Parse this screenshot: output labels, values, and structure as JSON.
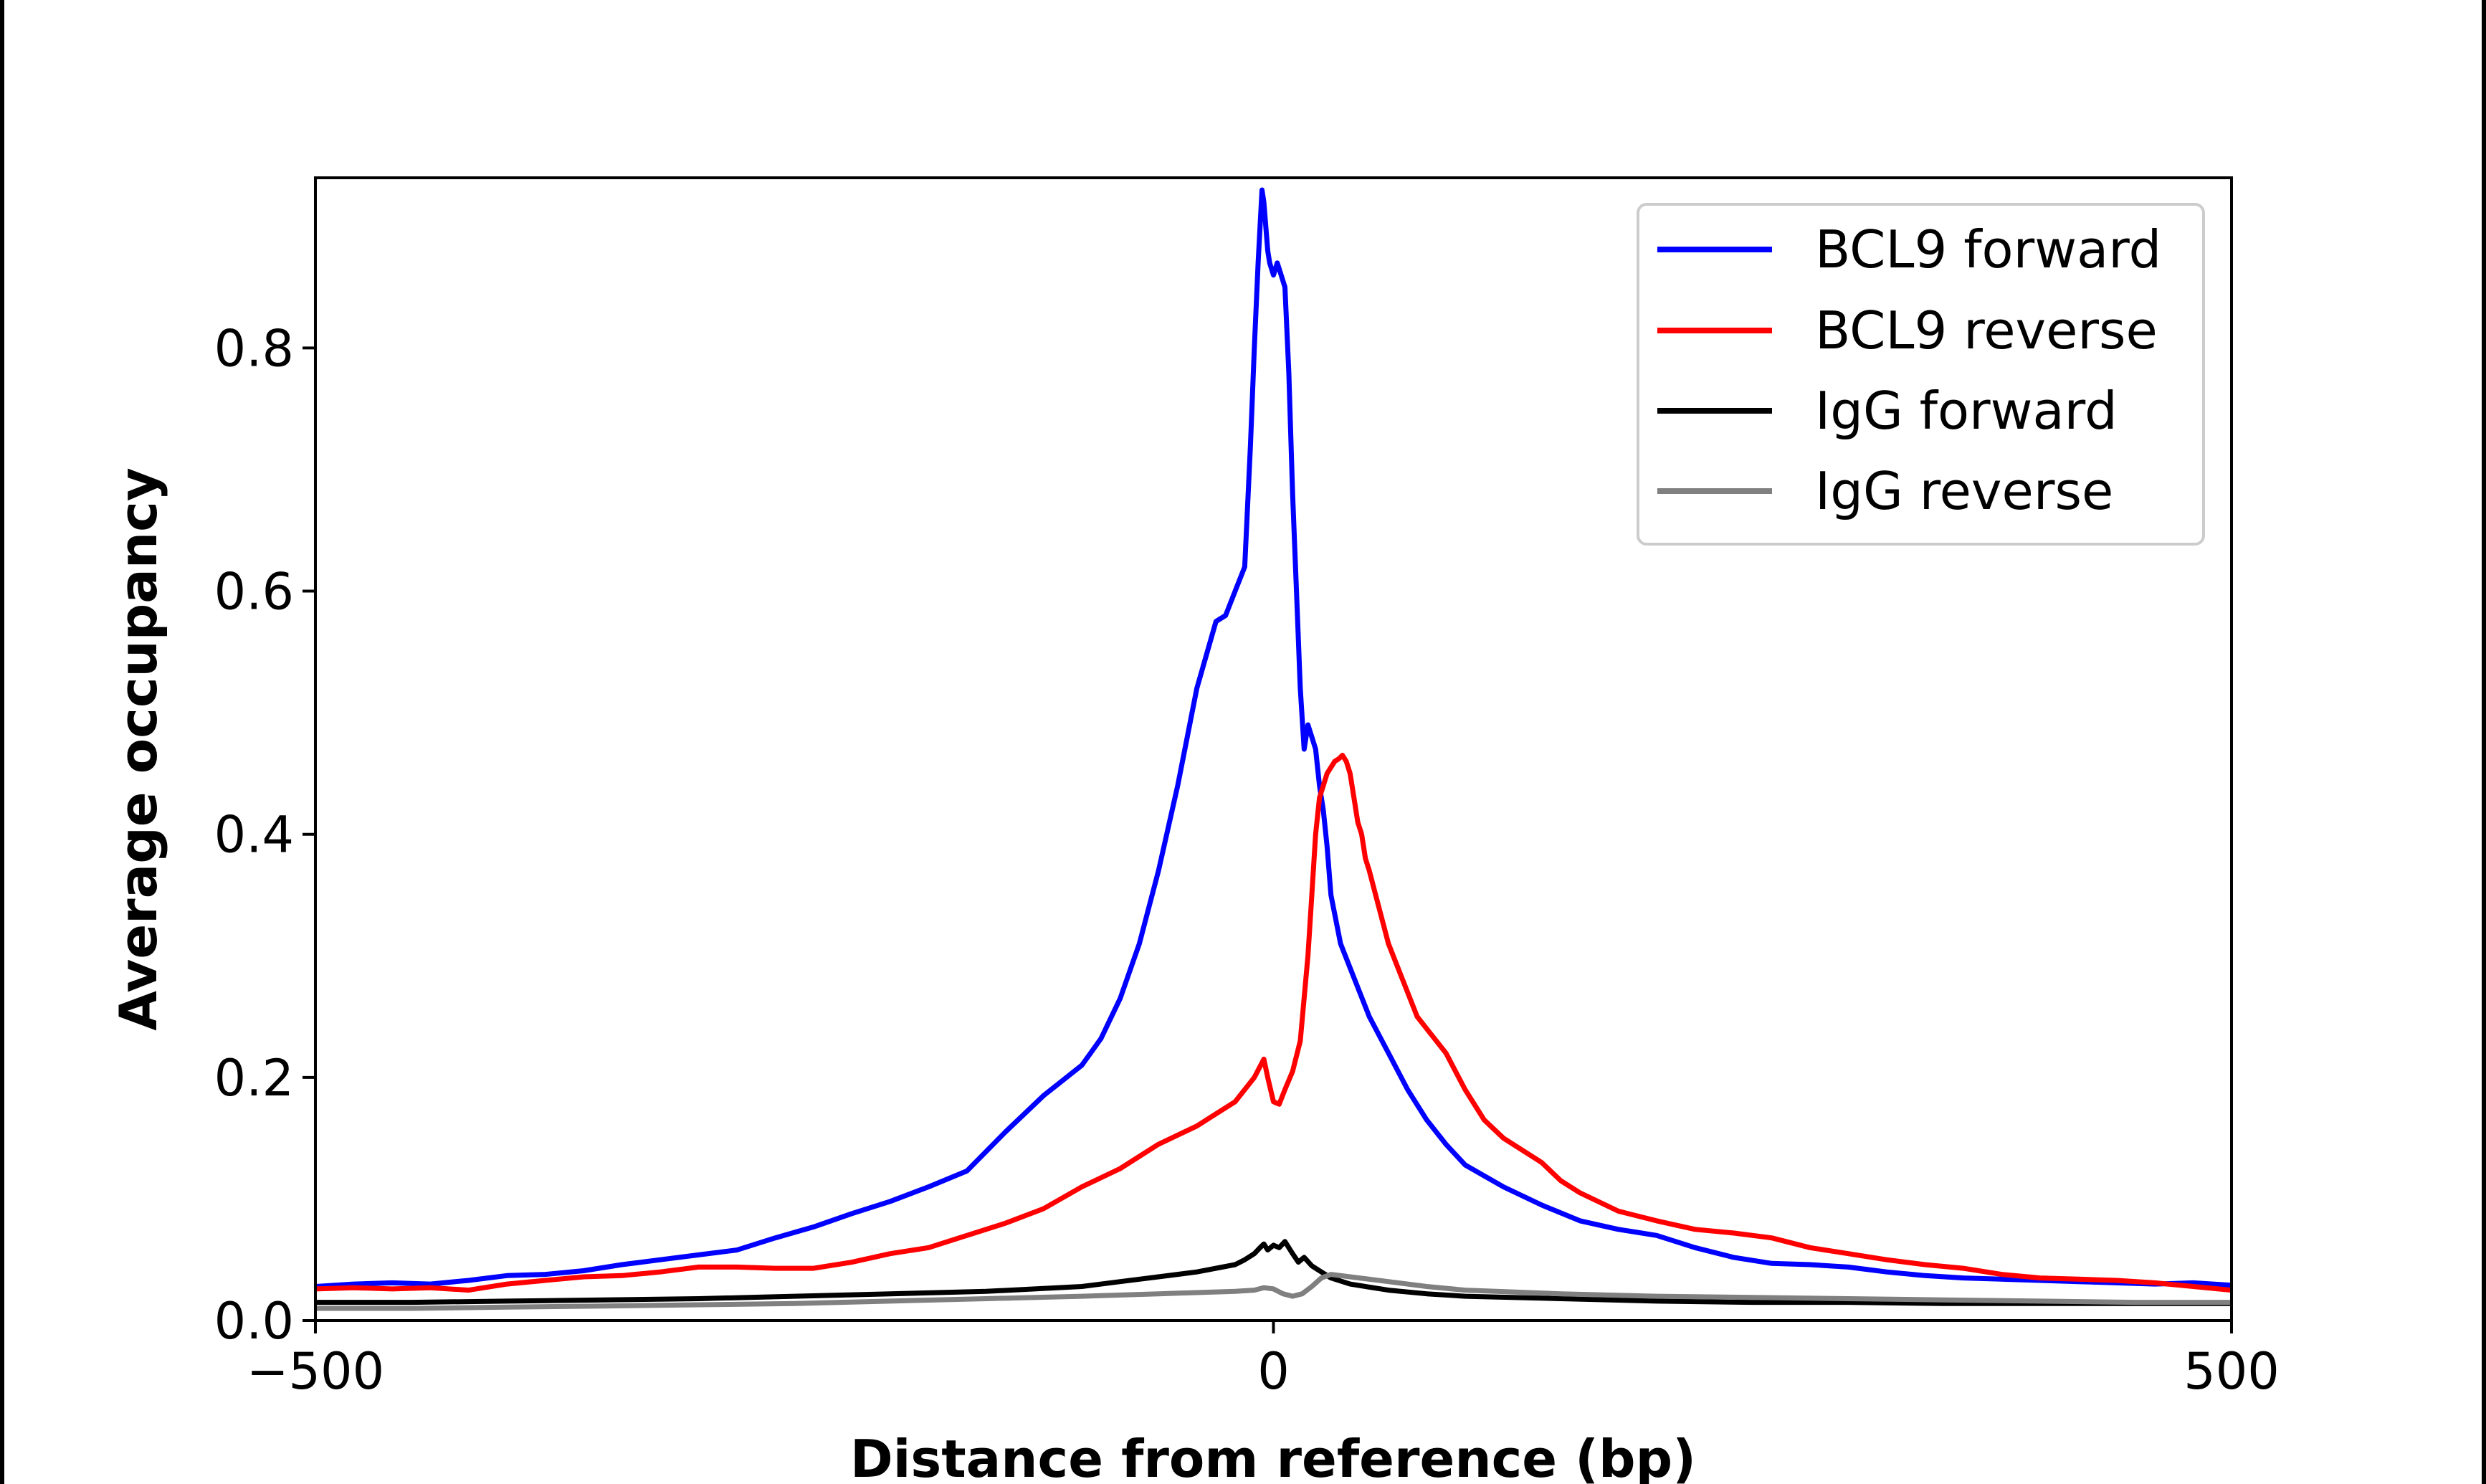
{
  "chart_data": {
    "type": "line",
    "xlabel": "Distance from reference (bp)",
    "ylabel": "Average occupancy",
    "xlim": [
      -500,
      500
    ],
    "ylim": [
      0,
      0.94
    ],
    "x_ticks": [
      -500,
      0,
      500
    ],
    "x_tick_labels": [
      "−500",
      "0",
      "500"
    ],
    "y_ticks": [
      0.0,
      0.2,
      0.4,
      0.6,
      0.8
    ],
    "y_tick_labels": [
      "0.0",
      "0.2",
      "0.4",
      "0.6",
      "0.8"
    ],
    "grid": false,
    "legend_position": "top-right",
    "series": [
      {
        "name": "BCL9 forward",
        "color": "#0000ff",
        "x": [
          -500,
          -480,
          -460,
          -440,
          -420,
          -400,
          -380,
          -360,
          -340,
          -320,
          -300,
          -280,
          -260,
          -240,
          -220,
          -200,
          -180,
          -160,
          -140,
          -120,
          -100,
          -90,
          -80,
          -70,
          -60,
          -50,
          -40,
          -30,
          -25,
          -20,
          -15,
          -12,
          -10,
          -8,
          -7,
          -6,
          -5,
          -4,
          -3,
          -2,
          0,
          2,
          4,
          6,
          8,
          10,
          12,
          14,
          16,
          18,
          20,
          22,
          24,
          26,
          28,
          30,
          35,
          40,
          45,
          50,
          60,
          70,
          80,
          90,
          100,
          120,
          140,
          160,
          180,
          200,
          220,
          240,
          260,
          280,
          300,
          320,
          340,
          360,
          380,
          400,
          420,
          440,
          460,
          480,
          500
        ],
        "y": [
          0.028,
          0.03,
          0.031,
          0.03,
          0.033,
          0.037,
          0.038,
          0.041,
          0.046,
          0.05,
          0.054,
          0.058,
          0.068,
          0.077,
          0.088,
          0.098,
          0.11,
          0.123,
          0.155,
          0.185,
          0.21,
          0.232,
          0.265,
          0.31,
          0.37,
          0.44,
          0.52,
          0.575,
          0.58,
          0.6,
          0.62,
          0.72,
          0.8,
          0.87,
          0.9,
          0.93,
          0.92,
          0.9,
          0.88,
          0.87,
          0.86,
          0.87,
          0.86,
          0.85,
          0.78,
          0.68,
          0.6,
          0.52,
          0.47,
          0.49,
          0.48,
          0.47,
          0.44,
          0.42,
          0.39,
          0.35,
          0.31,
          0.29,
          0.27,
          0.25,
          0.22,
          0.19,
          0.165,
          0.145,
          0.128,
          0.11,
          0.095,
          0.082,
          0.075,
          0.07,
          0.06,
          0.052,
          0.047,
          0.046,
          0.044,
          0.04,
          0.037,
          0.035,
          0.034,
          0.033,
          0.032,
          0.031,
          0.03,
          0.031,
          0.029
        ]
      },
      {
        "name": "BCL9 reverse",
        "color": "#ff0000",
        "x": [
          -500,
          -480,
          -460,
          -440,
          -420,
          -400,
          -380,
          -360,
          -340,
          -320,
          -300,
          -280,
          -260,
          -240,
          -220,
          -200,
          -180,
          -160,
          -140,
          -120,
          -100,
          -80,
          -60,
          -40,
          -30,
          -20,
          -10,
          -5,
          -3,
          0,
          3,
          6,
          10,
          14,
          18,
          20,
          22,
          24,
          26,
          28,
          30,
          32,
          34,
          36,
          38,
          40,
          42,
          44,
          46,
          48,
          50,
          55,
          60,
          65,
          70,
          75,
          80,
          90,
          100,
          110,
          120,
          130,
          140,
          150,
          160,
          180,
          200,
          220,
          240,
          260,
          280,
          300,
          320,
          340,
          360,
          380,
          400,
          420,
          440,
          460,
          480,
          500
        ],
        "y": [
          0.026,
          0.027,
          0.026,
          0.027,
          0.025,
          0.03,
          0.033,
          0.036,
          0.037,
          0.04,
          0.044,
          0.044,
          0.043,
          0.043,
          0.048,
          0.055,
          0.06,
          0.07,
          0.08,
          0.092,
          0.11,
          0.125,
          0.145,
          0.16,
          0.17,
          0.18,
          0.2,
          0.215,
          0.2,
          0.18,
          0.178,
          0.19,
          0.205,
          0.23,
          0.3,
          0.35,
          0.4,
          0.43,
          0.44,
          0.45,
          0.455,
          0.46,
          0.462,
          0.465,
          0.46,
          0.45,
          0.43,
          0.41,
          0.4,
          0.38,
          0.37,
          0.34,
          0.31,
          0.29,
          0.27,
          0.25,
          0.24,
          0.22,
          0.19,
          0.165,
          0.15,
          0.14,
          0.13,
          0.115,
          0.105,
          0.09,
          0.082,
          0.075,
          0.072,
          0.068,
          0.06,
          0.055,
          0.05,
          0.046,
          0.043,
          0.038,
          0.035,
          0.034,
          0.033,
          0.031,
          0.028,
          0.025
        ]
      },
      {
        "name": "IgG forward",
        "color": "#000000",
        "x": [
          -500,
          -450,
          -400,
          -350,
          -300,
          -250,
          -200,
          -150,
          -100,
          -80,
          -60,
          -40,
          -20,
          -15,
          -10,
          -7,
          -5,
          -3,
          0,
          3,
          6,
          10,
          13,
          16,
          20,
          25,
          30,
          40,
          60,
          80,
          100,
          150,
          200,
          250,
          300,
          350,
          400,
          450,
          500
        ],
        "y": [
          0.015,
          0.015,
          0.016,
          0.017,
          0.018,
          0.02,
          0.022,
          0.024,
          0.028,
          0.032,
          0.036,
          0.04,
          0.046,
          0.05,
          0.055,
          0.06,
          0.063,
          0.058,
          0.062,
          0.06,
          0.065,
          0.055,
          0.048,
          0.052,
          0.045,
          0.04,
          0.035,
          0.03,
          0.025,
          0.022,
          0.02,
          0.018,
          0.016,
          0.015,
          0.015,
          0.014,
          0.014,
          0.014,
          0.014
        ]
      },
      {
        "name": "IgG reverse",
        "color": "#808080",
        "x": [
          -500,
          -450,
          -400,
          -350,
          -300,
          -250,
          -200,
          -150,
          -100,
          -60,
          -40,
          -20,
          -10,
          -5,
          0,
          5,
          10,
          15,
          20,
          25,
          30,
          40,
          60,
          80,
          100,
          150,
          200,
          250,
          300,
          350,
          400,
          450,
          500
        ],
        "y": [
          0.01,
          0.01,
          0.011,
          0.012,
          0.013,
          0.014,
          0.016,
          0.018,
          0.02,
          0.022,
          0.023,
          0.024,
          0.025,
          0.027,
          0.026,
          0.022,
          0.02,
          0.022,
          0.028,
          0.035,
          0.038,
          0.036,
          0.032,
          0.028,
          0.025,
          0.022,
          0.02,
          0.019,
          0.018,
          0.017,
          0.016,
          0.015,
          0.015
        ]
      }
    ]
  }
}
